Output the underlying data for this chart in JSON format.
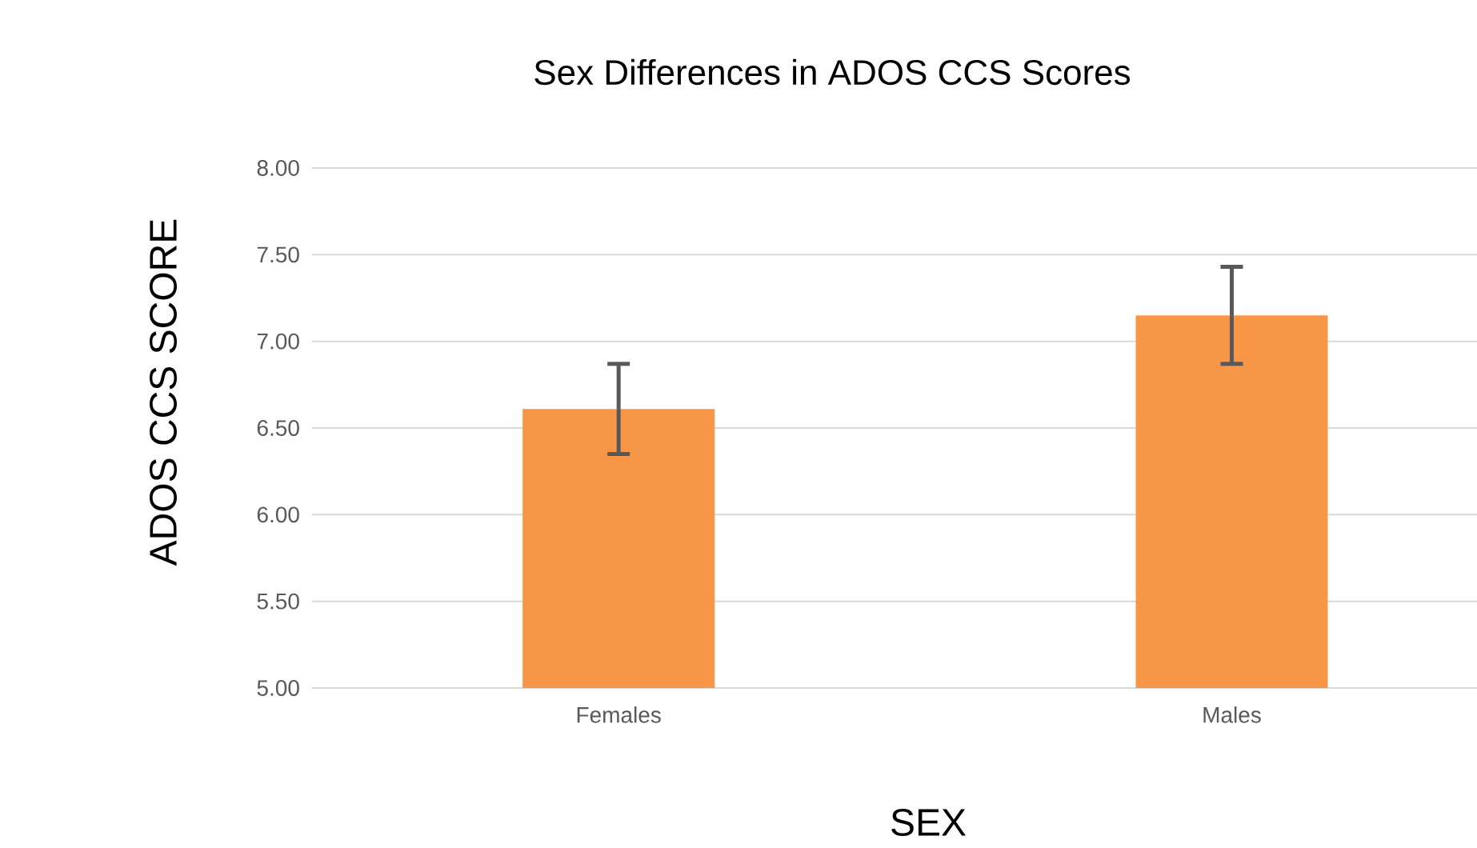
{
  "chart_data": {
    "type": "bar",
    "title": "Sex Differences in ADOS CCS Scores",
    "xlabel": "SEX",
    "ylabel": "ADOS CCS SCORE",
    "categories": [
      "Females",
      "Males"
    ],
    "values": [
      6.61,
      7.15
    ],
    "errors": [
      0.26,
      0.28
    ],
    "color": "#f79646",
    "ylim": [
      5,
      8
    ],
    "yticks": [
      {
        "value": 5,
        "label": "5.00"
      },
      {
        "value": 5.5,
        "label": "5.50"
      },
      {
        "value": 6,
        "label": "6.00"
      },
      {
        "value": 6.5,
        "label": "6.50"
      },
      {
        "value": 7,
        "label": "7.00"
      },
      {
        "value": 7.5,
        "label": "7.50"
      },
      {
        "value": 8,
        "label": "8.00"
      }
    ],
    "grid": "y"
  }
}
